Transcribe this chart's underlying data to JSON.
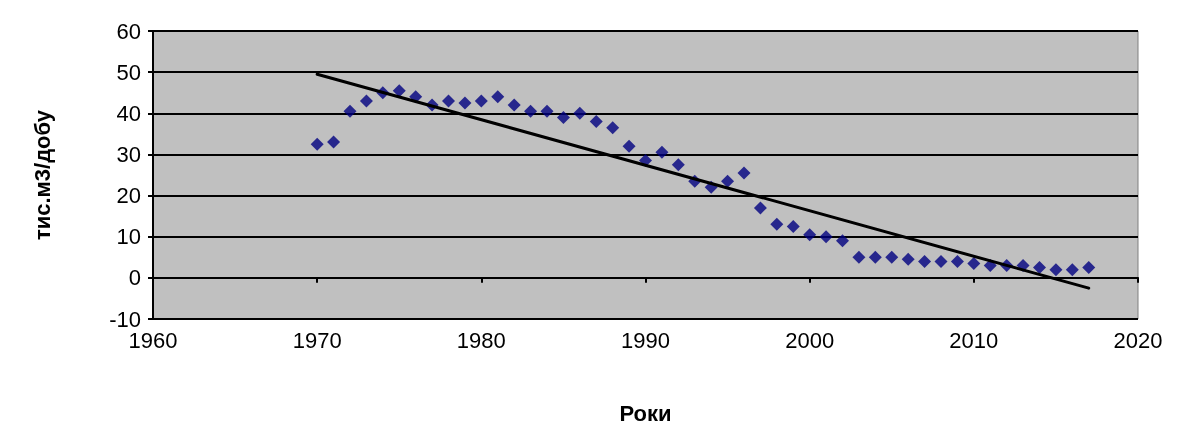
{
  "chart_data": {
    "type": "scatter",
    "xlabel": "Роки",
    "ylabel": "тис.м3/добу",
    "xlim": [
      1960,
      2020
    ],
    "xticks": [
      1960,
      1970,
      1980,
      1990,
      2000,
      2010,
      2020
    ],
    "ylim": [
      -10,
      60
    ],
    "yticks": [
      -10,
      0,
      10,
      20,
      30,
      40,
      50,
      60
    ],
    "grid": "y",
    "marker": "diamond",
    "series": [
      {
        "color": "#000080",
        "x": [
          1970,
          1971,
          1972,
          1973,
          1974,
          1975,
          1976,
          1977,
          1978,
          1979,
          1980,
          1981,
          1982,
          1983,
          1984,
          1985,
          1986,
          1987,
          1988,
          1989,
          1990,
          1991,
          1992,
          1993,
          1994,
          1995,
          1996,
          1997,
          1998,
          1999,
          2000,
          2001,
          2002,
          2003,
          2004,
          2005,
          2006,
          2007,
          2008,
          2009,
          2010,
          2011,
          2012,
          2013,
          2014,
          2015,
          2016,
          2017
        ],
        "values": [
          32.5,
          33,
          40.5,
          43,
          45,
          45.5,
          44,
          42,
          43,
          42.5,
          43,
          44,
          42,
          40.5,
          40.5,
          39,
          40,
          38,
          36.5,
          32,
          28.5,
          30.5,
          27.5,
          23.5,
          22,
          23.5,
          25.5,
          17,
          13,
          12.5,
          10.5,
          10,
          9,
          5,
          5,
          5,
          4.5,
          4,
          4,
          4,
          3.5,
          3,
          3,
          3,
          2.5,
          2,
          2,
          2.5
        ]
      },
      {
        "type": "line",
        "color": "#000000",
        "marker": "none",
        "x": [
          1970,
          2017
        ],
        "values": [
          49.5,
          -2.5
        ]
      }
    ]
  }
}
